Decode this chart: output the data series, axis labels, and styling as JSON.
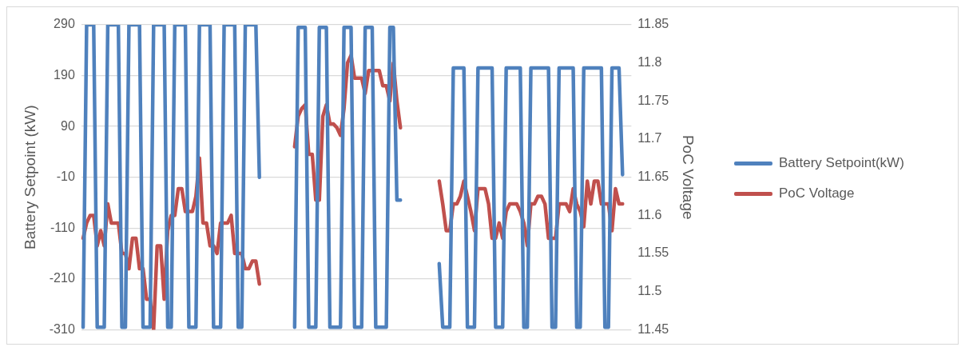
{
  "chart_data": {
    "type": "line",
    "categories": [
      null,
      null,
      null,
      null,
      null,
      null,
      null,
      null,
      null,
      null,
      null,
      null,
      null,
      null,
      null,
      null,
      null,
      null,
      null,
      null,
      null,
      null,
      null,
      null,
      null,
      null,
      null,
      null,
      null,
      null,
      null,
      null,
      null,
      null,
      null,
      null,
      null,
      null,
      null,
      null,
      null,
      null,
      null,
      null,
      null,
      null,
      null,
      null,
      null,
      null,
      null,
      null,
      null,
      null,
      null,
      null,
      null,
      null,
      null,
      null,
      null,
      null,
      null,
      null,
      null,
      null,
      null,
      null,
      null,
      null,
      null,
      null,
      null,
      null,
      null,
      null,
      null,
      null,
      null,
      null,
      null,
      null,
      null,
      null,
      null,
      null,
      null,
      null,
      null,
      null,
      null,
      null,
      null,
      null,
      null,
      null,
      null,
      null,
      null,
      null,
      null,
      null,
      null,
      null,
      null,
      null,
      null,
      null,
      null,
      null,
      null,
      null,
      null,
      null,
      null,
      null,
      null,
      null,
      null,
      null,
      null,
      null,
      null,
      null,
      null,
      null,
      null,
      null,
      null,
      null,
      null,
      null,
      null,
      null,
      null,
      null,
      null,
      null,
      null,
      null,
      null,
      null,
      null,
      null,
      null,
      null,
      null,
      null,
      null,
      null,
      null,
      null,
      null,
      null,
      null,
      null
    ],
    "series": [
      {
        "name": "Battery Setpoint(kW)",
        "color": "#4f81bd",
        "values": [
          -305,
          290,
          290,
          290,
          -305,
          -305,
          -305,
          290,
          290,
          290,
          290,
          -305,
          -305,
          290,
          290,
          290,
          290,
          -305,
          -305,
          -305,
          290,
          290,
          290,
          290,
          -305,
          -305,
          290,
          290,
          290,
          290,
          -305,
          -305,
          -305,
          290,
          290,
          290,
          290,
          -305,
          -305,
          -305,
          290,
          290,
          290,
          290,
          -305,
          -305,
          290,
          290,
          290,
          290,
          -10,
          null,
          null,
          null,
          null,
          null,
          null,
          null,
          null,
          null,
          -305,
          285,
          285,
          285,
          -305,
          -305,
          -305,
          285,
          285,
          285,
          -305,
          -305,
          -305,
          -305,
          285,
          285,
          285,
          -305,
          -305,
          -305,
          285,
          285,
          285,
          -305,
          -305,
          -305,
          -305,
          285,
          285,
          -55,
          -55,
          null,
          null,
          null,
          null,
          null,
          null,
          null,
          null,
          null,
          null,
          -180,
          -305,
          -305,
          -305,
          205,
          205,
          205,
          205,
          -305,
          -305,
          -305,
          205,
          205,
          205,
          205,
          205,
          -305,
          -305,
          -305,
          205,
          205,
          205,
          205,
          205,
          -305,
          -305,
          205,
          205,
          205,
          205,
          205,
          205,
          -305,
          -305,
          205,
          205,
          205,
          205,
          205,
          -305,
          -305,
          205,
          205,
          205,
          205,
          205,
          205,
          -305,
          -305,
          205,
          205,
          205,
          -5,
          null,
          null
        ]
      },
      {
        "name": "PoC Voltage",
        "color": "#c0504d",
        "axis": "y2",
        "values": [
          11.57,
          11.59,
          11.6,
          11.6,
          11.56,
          11.58,
          11.56,
          11.615,
          11.59,
          11.59,
          11.59,
          11.55,
          11.55,
          11.53,
          11.57,
          11.57,
          11.53,
          11.53,
          11.49,
          11.49,
          11.45,
          11.56,
          11.56,
          11.49,
          11.58,
          11.6,
          11.6,
          11.635,
          11.635,
          11.605,
          11.605,
          11.605,
          11.625,
          11.675,
          11.59,
          11.59,
          11.56,
          11.56,
          11.55,
          11.59,
          11.59,
          11.59,
          11.6,
          11.55,
          11.55,
          11.55,
          11.53,
          11.53,
          11.54,
          11.54,
          11.51,
          null,
          null,
          null,
          null,
          null,
          null,
          null,
          null,
          null,
          11.69,
          11.73,
          11.74,
          11.745,
          11.68,
          11.68,
          11.62,
          11.62,
          11.73,
          11.745,
          11.72,
          11.72,
          11.715,
          11.705,
          11.74,
          11.8,
          11.81,
          11.78,
          11.78,
          11.78,
          11.76,
          11.79,
          11.79,
          11.79,
          11.79,
          11.77,
          11.77,
          11.75,
          11.8,
          11.75,
          11.715,
          null,
          null,
          null,
          null,
          null,
          null,
          null,
          null,
          null,
          null,
          11.645,
          11.615,
          11.58,
          11.58,
          11.615,
          11.615,
          11.625,
          11.645,
          11.625,
          11.605,
          11.58,
          11.635,
          11.635,
          11.635,
          11.615,
          11.57,
          11.57,
          11.59,
          11.57,
          11.605,
          11.615,
          11.615,
          11.615,
          11.605,
          11.59,
          11.56,
          11.615,
          11.615,
          11.625,
          11.625,
          11.615,
          11.57,
          11.57,
          11.57,
          11.615,
          11.615,
          11.615,
          11.605,
          11.635,
          11.615,
          11.605,
          11.585,
          11.645,
          11.615,
          11.645,
          11.645,
          11.615,
          11.615,
          11.615,
          11.58,
          11.635,
          11.615,
          11.615,
          null,
          null
        ]
      }
    ],
    "ylabel": "Battery Setpoint (kW)",
    "y2label": "PoC Voltage",
    "ylim": [
      -310,
      290
    ],
    "yticks": [
      -310,
      -210,
      -110,
      -10,
      90,
      190,
      290
    ],
    "y2lim": [
      11.45,
      11.85
    ],
    "y2ticks": [
      11.45,
      11.5,
      11.55,
      11.6,
      11.65,
      11.7,
      11.75,
      11.8,
      11.85
    ],
    "grid": "y",
    "legend": "right"
  }
}
